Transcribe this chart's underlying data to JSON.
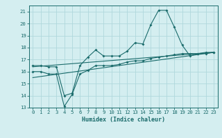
{
  "xlabel": "Humidex (Indice chaleur)",
  "ylabel": "",
  "bg_color": "#d4eef0",
  "grid_color": "#b0d8dc",
  "line_color": "#1a6b6b",
  "xlim": [
    -0.5,
    23.5
  ],
  "ylim": [
    13,
    21.5
  ],
  "xticks": [
    0,
    1,
    2,
    3,
    4,
    5,
    6,
    7,
    8,
    9,
    10,
    11,
    12,
    13,
    14,
    15,
    16,
    17,
    18,
    19,
    20,
    21,
    22,
    23
  ],
  "yticks": [
    13,
    14,
    15,
    16,
    17,
    18,
    19,
    20,
    21
  ],
  "line1_x": [
    0,
    1,
    2,
    3,
    4,
    5,
    6,
    7,
    8,
    9,
    10,
    11,
    12,
    13,
    14,
    15,
    16,
    17,
    18,
    19,
    20,
    21,
    22,
    23
  ],
  "line1_y": [
    16.5,
    16.5,
    16.4,
    16.4,
    14.0,
    14.2,
    16.5,
    17.2,
    17.8,
    17.3,
    17.3,
    17.3,
    17.7,
    18.4,
    18.3,
    19.9,
    21.1,
    21.1,
    19.7,
    18.2,
    17.3,
    17.5,
    17.5,
    17.6
  ],
  "line2_x": [
    0,
    1,
    2,
    3,
    4,
    5,
    6,
    7,
    8,
    9,
    10,
    11,
    12,
    13,
    14,
    15,
    16,
    17,
    18,
    19,
    20,
    21,
    22,
    23
  ],
  "line2_y": [
    16.0,
    16.0,
    15.8,
    15.8,
    13.1,
    14.1,
    15.8,
    16.1,
    16.5,
    16.5,
    16.5,
    16.6,
    16.8,
    16.9,
    16.9,
    17.1,
    17.2,
    17.3,
    17.4,
    17.5,
    17.5,
    17.5,
    17.6,
    17.6
  ],
  "line3_x": [
    0,
    23
  ],
  "line3_y": [
    15.5,
    17.6
  ],
  "line4_x": [
    0,
    23
  ],
  "line4_y": [
    16.4,
    17.6
  ]
}
